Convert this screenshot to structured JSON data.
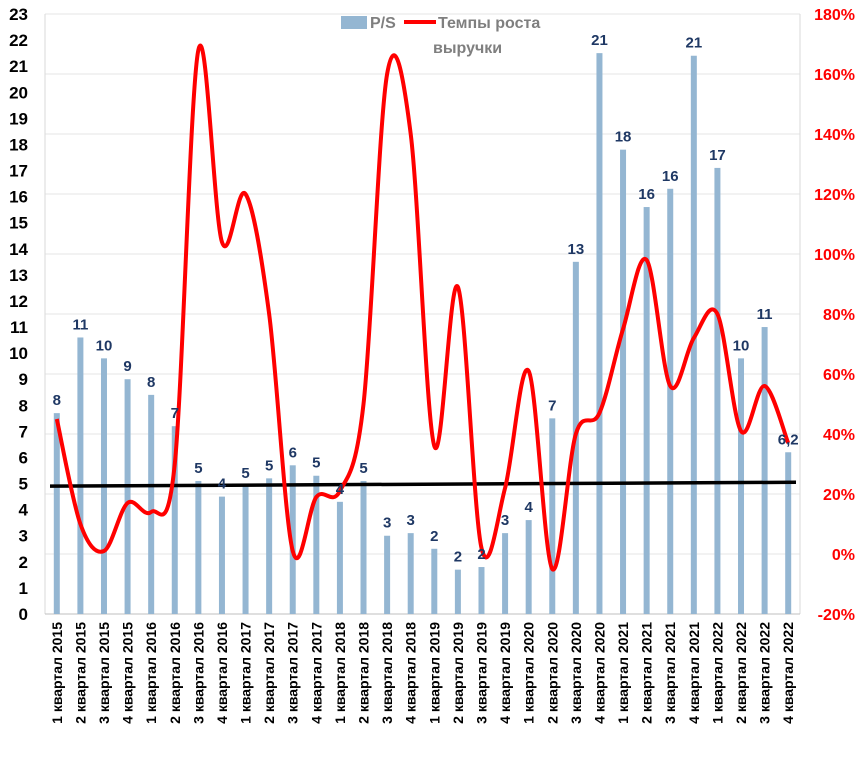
{
  "chart_data": {
    "type": "bar",
    "categories": [
      "1 квартал 2015",
      "2 квартал 2015",
      "3 квартал 2015",
      "4 квартал 2015",
      "1 квартал 2016",
      "2 квартал 2016",
      "3 квартал 2016",
      "4 квартал 2016",
      "1 квартал 2017",
      "2 квартал 2017",
      "3 квартал 2017",
      "4 квартал 2017",
      "1 квартал 2018",
      "2 квартал 2018",
      "3 квартал 2018",
      "4 квартал 2018",
      "1 квартал 2019",
      "2 квартал 2019",
      "3 квартал 2019",
      "4 квартал 2019",
      "1 квартал 2020",
      "2 квартал 2020",
      "3 квартал 2020",
      "4 квартал 2020",
      "1 квартал 2021",
      "2 квартал 2021",
      "3 квартал 2021",
      "4 квартал 2021",
      "1 квартал 2022",
      "2 квартал 2022",
      "3 квартал 2022",
      "4 квартал 2022"
    ],
    "series": [
      {
        "name": "P/S",
        "type": "bar",
        "axis": "left",
        "color": "#94b6d2",
        "values": [
          7.7,
          10.6,
          9.8,
          9.0,
          8.4,
          7.2,
          5.1,
          4.5,
          4.9,
          5.2,
          5.7,
          5.3,
          4.3,
          5.1,
          3.0,
          3.1,
          2.5,
          1.7,
          1.8,
          3.1,
          3.6,
          7.5,
          13.5,
          21.5,
          17.8,
          15.6,
          16.3,
          21.4,
          17.1,
          9.8,
          11.0,
          6.2
        ],
        "labels": [
          "8",
          "11",
          "10",
          "9",
          "8",
          "7",
          "5",
          "4",
          "5",
          "5",
          "6",
          "5",
          "4",
          "5",
          "3",
          "3",
          "2",
          "2",
          "2",
          "3",
          "4",
          "7",
          "13",
          "21",
          "18",
          "16",
          "16",
          "21",
          "17",
          "10",
          "11",
          "6,2"
        ]
      },
      {
        "name": "Темпы роста выручки",
        "type": "line",
        "axis": "right",
        "color": "#ff0000",
        "values": [
          45,
          10,
          1,
          17,
          14,
          30,
          168,
          104,
          120,
          80,
          1,
          19,
          21,
          50,
          160,
          140,
          36,
          89,
          2,
          22,
          61,
          -5,
          40,
          47,
          75,
          98,
          56,
          72,
          80,
          41,
          56,
          37
        ]
      }
    ],
    "reference_line": {
      "axis": "left",
      "from": 4.9,
      "to": 5.05,
      "color": "#000000"
    },
    "yleft_ticks": [
      "0",
      "1",
      "2",
      "3",
      "4",
      "5",
      "6",
      "7",
      "8",
      "9",
      "10",
      "11",
      "12",
      "13",
      "14",
      "15",
      "16",
      "17",
      "18",
      "19",
      "20",
      "21",
      "22",
      "23"
    ],
    "yright_ticks": [
      "-20%",
      "0%",
      "20%",
      "40%",
      "60%",
      "80%",
      "100%",
      "120%",
      "140%",
      "160%",
      "180%"
    ],
    "ylim_left": [
      0,
      23
    ],
    "ylim_right": [
      -20,
      180
    ],
    "grid": true,
    "legend_position": "top-center",
    "label_color": "#1f3864",
    "right_axis_color": "#ff0000"
  }
}
